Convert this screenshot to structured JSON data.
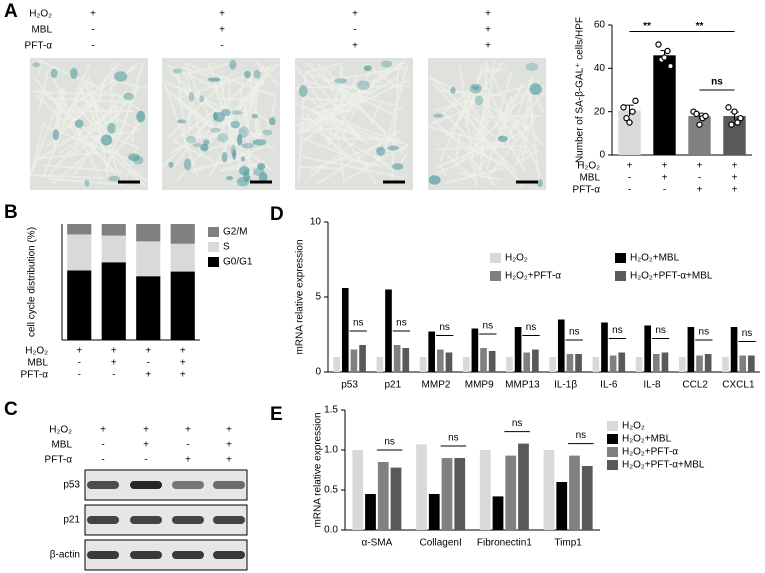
{
  "panel_labels": [
    "A",
    "B",
    "C",
    "D",
    "E"
  ],
  "micrographs": {
    "condition_labels": [
      "H₂O₂",
      "MBL",
      "PFT-α"
    ],
    "condition_signs": [
      [
        "+",
        "+",
        "+",
        "+"
      ],
      [
        "-",
        "+",
        "-",
        "+"
      ],
      [
        "-",
        "-",
        "+",
        "+"
      ]
    ]
  },
  "blot": {
    "condition_labels": [
      "H₂O₂",
      "MBL",
      "PFT-α"
    ],
    "condition_signs": [
      [
        "+",
        "+",
        "+",
        "+"
      ],
      [
        "-",
        "+",
        "-",
        "+"
      ],
      [
        "-",
        "-",
        "+",
        "+"
      ]
    ],
    "bands": [
      "p53",
      "p21",
      "β-actin"
    ]
  },
  "chart_data": [
    {
      "type": "bar",
      "ylabel": "Number of SA-β-GAL⁺ cells/HPF",
      "categories": [
        null,
        null,
        null,
        null
      ],
      "values": [
        20.5,
        46,
        18,
        18
      ],
      "errors": [
        2.5,
        2.2,
        1.3,
        1.8
      ],
      "points": [
        [
          22,
          17,
          15,
          20,
          25
        ],
        [
          51,
          44,
          45,
          48,
          41
        ],
        [
          20,
          19,
          14,
          17,
          18
        ],
        [
          22,
          14,
          20,
          15,
          17
        ]
      ],
      "colors": [
        "#d9d9d9",
        "#000000",
        "#808080",
        "#595959"
      ],
      "ylim": [
        0,
        60
      ],
      "yticks": [
        0,
        20,
        40,
        60
      ],
      "condition_labels": [
        "H₂O₂",
        "MBL",
        "PFT-α"
      ],
      "condition_signs": [
        [
          "+",
          "+",
          "+",
          "+"
        ],
        [
          "-",
          "+",
          "-",
          "+"
        ],
        [
          "-",
          "-",
          "+",
          "+"
        ]
      ],
      "annotations": [
        "**",
        "**",
        "ns"
      ]
    },
    {
      "type": "stacked_bar",
      "ylabel": "cell cycle distribution (%)",
      "categories": [
        null,
        null,
        null,
        null
      ],
      "series": [
        {
          "name": "G0/G1",
          "color": "#000000",
          "values": [
            60,
            67,
            55,
            59
          ]
        },
        {
          "name": "S",
          "color": "#d9d9d9",
          "values": [
            31,
            23,
            30,
            24
          ]
        },
        {
          "name": "G2/M",
          "color": "#808080",
          "values": [
            9,
            10,
            15,
            17
          ]
        }
      ],
      "ylim": [
        0,
        100
      ],
      "condition_labels": [
        "H₂O₂",
        "MBL",
        "PFT-α"
      ],
      "condition_signs": [
        [
          "+",
          "+",
          "+",
          "+"
        ],
        [
          "-",
          "+",
          "-",
          "+"
        ],
        [
          "-",
          "-",
          "+",
          "+"
        ]
      ]
    },
    {
      "type": "grouped_bar",
      "ylabel": "mRNA relative expression",
      "categories": [
        "p53",
        "p21",
        "MMP2",
        "MMP9",
        "MMP13",
        "IL-1β",
        "IL-6",
        "IL-8",
        "CCL2",
        "CXCL1"
      ],
      "series": [
        {
          "name": "H₂O₂",
          "color": "#d9d9d9",
          "values": [
            1,
            1,
            1,
            1,
            1,
            1,
            1,
            1,
            1,
            1
          ]
        },
        {
          "name": "H₂O₂+MBL",
          "color": "#000000",
          "values": [
            5.6,
            5.5,
            2.7,
            2.9,
            3.0,
            3.5,
            3.3,
            3.1,
            3.0,
            3.0
          ]
        },
        {
          "name": "H₂O₂+PFT-α",
          "color": "#808080",
          "values": [
            1.5,
            1.8,
            1.5,
            1.6,
            1.3,
            1.2,
            1.1,
            1.2,
            1.1,
            1.1
          ]
        },
        {
          "name": "H₂O₂+PFT-α+MBL",
          "color": "#595959",
          "values": [
            1.8,
            1.6,
            1.3,
            1.4,
            1.5,
            1.2,
            1.3,
            1.3,
            1.2,
            1.1
          ]
        }
      ],
      "ylim": [
        0,
        10
      ],
      "yticks": [
        0,
        5,
        10
      ],
      "annotations": [
        "ns",
        "ns",
        "ns",
        "ns",
        "ns",
        "ns",
        "ns",
        "ns",
        "ns",
        "ns"
      ]
    },
    {
      "type": "grouped_bar",
      "ylabel": "mRNA relative expression",
      "categories": [
        "α-SMA",
        "CollagenI",
        "Fibronectin1",
        "Timp1"
      ],
      "series": [
        {
          "name": "H₂O₂",
          "color": "#d9d9d9",
          "values": [
            1.0,
            1.07,
            1.0,
            1.0
          ]
        },
        {
          "name": "H₂O₂+MBL",
          "color": "#000000",
          "values": [
            0.45,
            0.45,
            0.42,
            0.6
          ]
        },
        {
          "name": "H₂O₂+PFT-α",
          "color": "#808080",
          "values": [
            0.85,
            0.9,
            0.93,
            0.93
          ]
        },
        {
          "name": "H₂O₂+PFT-α+MBL",
          "color": "#595959",
          "values": [
            0.78,
            0.9,
            1.08,
            0.8
          ]
        }
      ],
      "ylim": [
        0,
        1.5
      ],
      "yticks": [
        {
          "value": 0,
          "label": "0.0"
        },
        {
          "value": 0.5,
          "label": "0.5"
        },
        {
          "value": 1,
          "label": "1.0"
        },
        {
          "value": 1.5,
          "label": "1.5"
        }
      ],
      "annotations": [
        "ns",
        "ns",
        "ns",
        "ns"
      ]
    }
  ]
}
